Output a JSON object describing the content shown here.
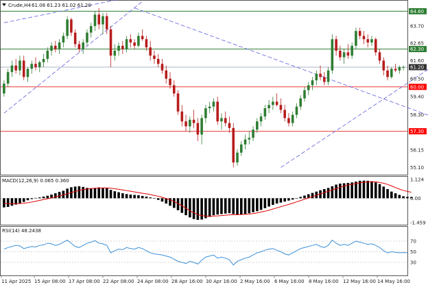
{
  "header": {
    "symbol_label": "Crude,H4",
    "ohlc_text": "61.08 61.23 61.02 61.20",
    "dropdown_icon": "triangle-down-icon"
  },
  "colors": {
    "bull_candle": "#2e7d32",
    "bear_candle": "#b71c1c",
    "support_line": "#e53935",
    "resistance_line": "#2e7d32",
    "trend_line": "#5c5ce0",
    "price_line": "#556b8d",
    "macd_hist": "#000000",
    "macd_signal": "#e00000",
    "rsi_line": "#3a8fd8",
    "level_badge_red": "#ff0000",
    "level_badge_green": "#2e7d32",
    "price_badge": "#333333"
  },
  "price_axis": {
    "ticks": [
      "64.60",
      "63.70",
      "62.65",
      "61.60",
      "60.50",
      "59.40",
      "58.30",
      "57.30",
      "56.15",
      "55.10"
    ],
    "tick_values": [
      64.6,
      63.7,
      62.65,
      61.6,
      60.5,
      59.4,
      58.3,
      57.3,
      56.15,
      55.1
    ],
    "level_badges": [
      {
        "label": "64.60",
        "value": 64.6,
        "kind": "green"
      },
      {
        "label": "62.30",
        "value": 62.3,
        "kind": "green"
      },
      {
        "label": "61.20",
        "value": 61.2,
        "kind": "price"
      },
      {
        "label": "60.00",
        "value": 60.0,
        "kind": "red"
      },
      {
        "label": "57.30",
        "value": 57.3,
        "kind": "red"
      }
    ]
  },
  "time_axis": {
    "labels": [
      "11 Apr 2025",
      "15 Apr 08:00",
      "17 Apr 08:00",
      "22 Apr 08:00",
      "24 Apr 08:00",
      "28 Apr 16:00",
      "30 Apr 16:00",
      "2 May 16:00",
      "6 May 16:00",
      "8 May 16:00",
      "12 May 16:00",
      "14 May 16:00"
    ]
  },
  "macd_panel": {
    "title": "MACD(12,26,9) 0.065 0.360",
    "ticks": [
      "1.124",
      "0.00",
      "-1.459"
    ],
    "tick_values": [
      1.124,
      0.0,
      -1.459
    ]
  },
  "rsi_panel": {
    "title": "RSI(14) 48.2438",
    "ticks": [
      "70",
      "50",
      "30"
    ],
    "tick_values": [
      70,
      50,
      30
    ]
  },
  "chart_data": {
    "type": "candlestick",
    "title": "Crude,H4",
    "ylim": [
      54.7,
      65.2
    ],
    "horizontal_levels": [
      {
        "value": 64.6,
        "color": "green"
      },
      {
        "value": 62.3,
        "color": "green"
      },
      {
        "value": 61.2,
        "color": "price"
      },
      {
        "value": 60.0,
        "color": "red"
      },
      {
        "value": 57.3,
        "color": "red"
      }
    ],
    "trend_lines": [
      {
        "from": [
          0,
          58.4
        ],
        "to": [
          35,
          65.2
        ],
        "style": "dashed"
      },
      {
        "from": [
          0,
          63.9
        ],
        "to": [
          45,
          66.1
        ],
        "style": "dashed"
      },
      {
        "from": [
          33,
          64.8
        ],
        "to": [
          115,
          57.6
        ],
        "style": "dashed"
      },
      {
        "from": [
          70,
          55.1
        ],
        "to": [
          115,
          62.3
        ],
        "style": "dashed"
      }
    ],
    "candles": [
      [
        59.6,
        60.4,
        59.4,
        60.2
      ],
      [
        60.2,
        61.1,
        60.0,
        60.9
      ],
      [
        60.9,
        61.6,
        60.6,
        61.3
      ],
      [
        61.3,
        61.7,
        60.8,
        61.0
      ],
      [
        61.0,
        61.9,
        60.7,
        61.6
      ],
      [
        61.6,
        61.9,
        60.4,
        60.6
      ],
      [
        60.6,
        61.2,
        60.3,
        61.1
      ],
      [
        61.1,
        61.6,
        60.8,
        61.4
      ],
      [
        61.4,
        61.8,
        61.0,
        61.2
      ],
      [
        61.2,
        61.6,
        60.9,
        61.5
      ],
      [
        61.5,
        62.0,
        61.2,
        61.7
      ],
      [
        61.7,
        62.4,
        61.5,
        62.2
      ],
      [
        62.2,
        62.7,
        61.9,
        62.5
      ],
      [
        62.5,
        62.8,
        62.1,
        62.3
      ],
      [
        62.3,
        62.9,
        62.0,
        62.7
      ],
      [
        62.7,
        63.3,
        62.4,
        63.1
      ],
      [
        63.1,
        64.3,
        62.9,
        64.1
      ],
      [
        64.1,
        64.2,
        63.1,
        63.3
      ],
      [
        63.3,
        63.5,
        62.4,
        62.6
      ],
      [
        62.6,
        62.8,
        62.1,
        62.3
      ],
      [
        62.3,
        62.9,
        62.0,
        62.7
      ],
      [
        62.7,
        63.5,
        62.5,
        63.3
      ],
      [
        63.3,
        63.9,
        63.0,
        63.7
      ],
      [
        63.7,
        64.6,
        63.4,
        64.4
      ],
      [
        64.4,
        64.8,
        63.5,
        63.8
      ],
      [
        63.8,
        64.5,
        63.2,
        64.3
      ],
      [
        64.3,
        64.5,
        63.2,
        63.5
      ],
      [
        63.5,
        63.7,
        61.2,
        61.9
      ],
      [
        61.9,
        62.6,
        61.6,
        62.2
      ],
      [
        62.2,
        62.7,
        61.9,
        62.5
      ],
      [
        62.5,
        62.8,
        62.0,
        62.3
      ],
      [
        62.3,
        63.1,
        62.1,
        62.9
      ],
      [
        62.9,
        63.2,
        62.4,
        62.7
      ],
      [
        62.7,
        62.9,
        62.3,
        62.5
      ],
      [
        62.5,
        63.3,
        62.4,
        63.1
      ],
      [
        63.1,
        63.5,
        62.8,
        62.9
      ],
      [
        62.9,
        63.1,
        62.2,
        62.4
      ],
      [
        62.4,
        62.8,
        61.6,
        61.9
      ],
      [
        61.9,
        62.2,
        61.4,
        61.7
      ],
      [
        61.7,
        62.0,
        61.2,
        61.4
      ],
      [
        61.4,
        61.7,
        60.8,
        61.0
      ],
      [
        61.0,
        61.3,
        60.2,
        60.5
      ],
      [
        60.5,
        60.9,
        59.9,
        60.1
      ],
      [
        60.1,
        60.4,
        59.4,
        59.6
      ],
      [
        59.6,
        59.8,
        58.3,
        58.5
      ],
      [
        58.5,
        58.9,
        57.6,
        57.9
      ],
      [
        57.9,
        58.3,
        57.3,
        57.6
      ],
      [
        57.6,
        58.2,
        57.2,
        58.0
      ],
      [
        58.0,
        58.6,
        57.5,
        57.8
      ],
      [
        57.8,
        58.1,
        56.7,
        57.1
      ],
      [
        57.1,
        58.3,
        56.5,
        58.1
      ],
      [
        58.1,
        58.9,
        57.8,
        58.7
      ],
      [
        58.7,
        59.1,
        58.4,
        58.8
      ],
      [
        58.8,
        59.3,
        58.5,
        59.1
      ],
      [
        59.1,
        59.4,
        57.7,
        57.9
      ],
      [
        57.9,
        58.4,
        57.4,
        58.1
      ],
      [
        58.1,
        58.5,
        57.6,
        57.8
      ],
      [
        57.8,
        58.2,
        57.2,
        57.5
      ],
      [
        57.5,
        57.8,
        55.1,
        55.4
      ],
      [
        55.4,
        56.2,
        55.2,
        56.0
      ],
      [
        56.0,
        56.7,
        55.8,
        56.5
      ],
      [
        56.5,
        57.1,
        56.2,
        56.8
      ],
      [
        56.8,
        57.3,
        56.5,
        56.9
      ],
      [
        56.9,
        57.6,
        56.7,
        57.4
      ],
      [
        57.4,
        58.1,
        57.2,
        57.9
      ],
      [
        57.9,
        58.4,
        57.6,
        58.2
      ],
      [
        58.2,
        58.9,
        58.0,
        58.7
      ],
      [
        58.7,
        59.2,
        58.4,
        58.9
      ],
      [
        58.9,
        59.4,
        58.6,
        59.1
      ],
      [
        59.1,
        59.6,
        58.8,
        58.9
      ],
      [
        58.9,
        59.3,
        58.4,
        58.6
      ],
      [
        58.6,
        58.9,
        57.9,
        58.1
      ],
      [
        58.1,
        58.4,
        57.6,
        57.8
      ],
      [
        57.8,
        58.5,
        57.6,
        58.3
      ],
      [
        58.3,
        59.0,
        58.1,
        58.8
      ],
      [
        58.8,
        59.5,
        58.6,
        59.3
      ],
      [
        59.3,
        60.0,
        59.1,
        59.8
      ],
      [
        59.8,
        60.3,
        59.5,
        60.1
      ],
      [
        60.1,
        60.6,
        59.8,
        60.4
      ],
      [
        60.4,
        61.0,
        60.1,
        60.8
      ],
      [
        60.8,
        61.3,
        60.4,
        60.6
      ],
      [
        60.6,
        60.9,
        60.1,
        60.3
      ],
      [
        60.3,
        61.2,
        60.1,
        61.0
      ],
      [
        61.0,
        63.2,
        60.8,
        62.9
      ],
      [
        62.9,
        63.1,
        61.9,
        62.2
      ],
      [
        62.2,
        62.5,
        61.6,
        61.8
      ],
      [
        61.8,
        62.3,
        61.4,
        62.1
      ],
      [
        62.1,
        62.6,
        61.7,
        61.9
      ],
      [
        61.9,
        62.7,
        61.7,
        62.5
      ],
      [
        62.5,
        63.6,
        62.3,
        63.4
      ],
      [
        63.4,
        63.6,
        62.9,
        63.1
      ],
      [
        63.1,
        63.4,
        62.6,
        62.9
      ],
      [
        62.9,
        63.2,
        62.4,
        62.7
      ],
      [
        62.7,
        63.1,
        62.5,
        62.9
      ],
      [
        62.9,
        63.0,
        61.9,
        62.1
      ],
      [
        62.1,
        62.3,
        61.4,
        61.6
      ],
      [
        61.6,
        61.8,
        60.7,
        61.0
      ],
      [
        61.0,
        61.3,
        60.4,
        60.6
      ],
      [
        60.6,
        61.2,
        60.5,
        61.1
      ],
      [
        61.1,
        61.4,
        60.9,
        61.0
      ],
      [
        61.0,
        61.3,
        60.8,
        61.2
      ],
      [
        61.2,
        61.3,
        61.0,
        61.2
      ]
    ],
    "macd_histogram": [
      -0.55,
      -0.52,
      -0.45,
      -0.38,
      -0.3,
      -0.22,
      -0.12,
      -0.05,
      0.02,
      0.05,
      0.1,
      0.15,
      0.22,
      0.3,
      0.38,
      0.45,
      0.58,
      0.66,
      0.7,
      0.72,
      0.68,
      0.62,
      0.6,
      0.62,
      0.65,
      0.62,
      0.6,
      0.5,
      0.42,
      0.36,
      0.3,
      0.25,
      0.22,
      0.2,
      0.18,
      0.14,
      0.1,
      0.05,
      -0.02,
      -0.1,
      -0.2,
      -0.32,
      -0.45,
      -0.58,
      -0.72,
      -0.88,
      -1.02,
      -1.15,
      -1.25,
      -1.3,
      -1.28,
      -1.2,
      -1.12,
      -1.02,
      -0.98,
      -0.95,
      -0.92,
      -0.9,
      -0.95,
      -1.0,
      -0.98,
      -0.94,
      -0.9,
      -0.84,
      -0.78,
      -0.7,
      -0.6,
      -0.5,
      -0.4,
      -0.32,
      -0.26,
      -0.2,
      -0.14,
      -0.08,
      0.0,
      0.08,
      0.16,
      0.24,
      0.32,
      0.4,
      0.48,
      0.55,
      0.62,
      0.72,
      0.82,
      0.88,
      0.9,
      0.92,
      0.95,
      1.0,
      1.05,
      1.06,
      1.05,
      1.02,
      0.95,
      0.85,
      0.7,
      0.55,
      0.4,
      0.3,
      0.2,
      0.12,
      0.08,
      0.065
    ],
    "macd_signal": [
      -0.3,
      -0.32,
      -0.33,
      -0.33,
      -0.32,
      -0.3,
      -0.27,
      -0.23,
      -0.18,
      -0.13,
      -0.08,
      -0.03,
      0.02,
      0.08,
      0.14,
      0.2,
      0.27,
      0.34,
      0.41,
      0.47,
      0.52,
      0.55,
      0.58,
      0.6,
      0.61,
      0.62,
      0.62,
      0.6,
      0.57,
      0.54,
      0.5,
      0.46,
      0.42,
      0.38,
      0.34,
      0.3,
      0.26,
      0.22,
      0.17,
      0.12,
      0.06,
      -0.02,
      -0.1,
      -0.2,
      -0.32,
      -0.45,
      -0.6,
      -0.75,
      -0.88,
      -0.98,
      -1.04,
      -1.07,
      -1.08,
      -1.07,
      -1.06,
      -1.04,
      -1.02,
      -1.0,
      -0.99,
      -0.99,
      -0.98,
      -0.97,
      -0.95,
      -0.92,
      -0.88,
      -0.83,
      -0.78,
      -0.72,
      -0.65,
      -0.58,
      -0.51,
      -0.44,
      -0.37,
      -0.3,
      -0.22,
      -0.14,
      -0.06,
      0.02,
      0.1,
      0.18,
      0.26,
      0.34,
      0.42,
      0.5,
      0.58,
      0.66,
      0.73,
      0.79,
      0.84,
      0.89,
      0.93,
      0.96,
      0.98,
      0.99,
      0.98,
      0.95,
      0.9,
      0.83,
      0.74,
      0.64,
      0.55,
      0.47,
      0.41,
      0.36
    ],
    "rsi": [
      55,
      58,
      60,
      62,
      61,
      56,
      58,
      60,
      59,
      62,
      63,
      66,
      65,
      62,
      64,
      68,
      72,
      66,
      60,
      58,
      62,
      66,
      68,
      71,
      66,
      65,
      62,
      48,
      52,
      55,
      54,
      58,
      56,
      55,
      58,
      56,
      52,
      48,
      46,
      45,
      44,
      42,
      40,
      36,
      32,
      30,
      28,
      32,
      30,
      27,
      34,
      40,
      42,
      44,
      38,
      40,
      38,
      35,
      25,
      32,
      35,
      38,
      40,
      44,
      48,
      50,
      53,
      55,
      56,
      53,
      50,
      46,
      44,
      48,
      52,
      56,
      58,
      60,
      62,
      64,
      60,
      58,
      62,
      72,
      66,
      62,
      64,
      62,
      66,
      70,
      68,
      66,
      64,
      65,
      62,
      58,
      52,
      48,
      50,
      49,
      48,
      48.5,
      48.2438
    ]
  }
}
